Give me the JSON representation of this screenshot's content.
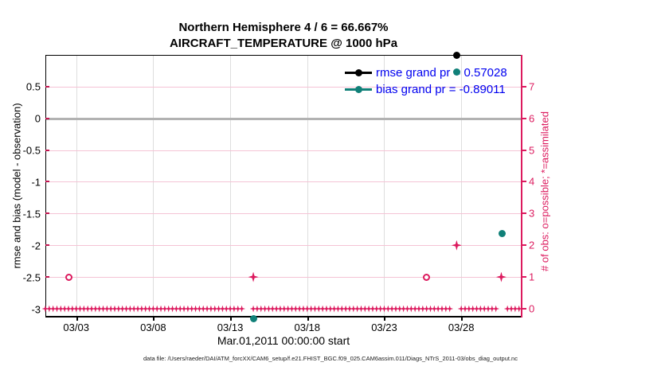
{
  "header": {
    "title": "Northern Hemisphere 4 / 6 = 66.667%",
    "subtitle": "AIRCRAFT_TEMPERATURE @ 1000 hPa"
  },
  "legend": {
    "rmse_label": "rmse grand pr = 0.57028",
    "bias_label": "bias grand pr = -0.89011"
  },
  "footer": {
    "data_file_text": "data file: /Users/raeder/DAI/ATM_forcXX/CAM6_setup/f.e21.FHIST_BGC.f09_025.CAM6assim.011/Diags_NTrS_2011-03/obs_diag_output.nc"
  },
  "colors": {
    "obs_crimson": "#dc1a5e",
    "bias_teal": "#108078",
    "rmse_black": "#000000",
    "legend_blue": "#0000f0",
    "zero_line_gray": "#b2b2b2",
    "pink_grid": "#f5c3d5",
    "gray_grid": "#dedede"
  },
  "chart_data": {
    "type": "scatter",
    "title": "Northern Hemisphere 4 / 6 = 66.667%",
    "subtitle": "AIRCRAFT_TEMPERATURE @ 1000 hPa",
    "xlabel": "Mar.01,2011 00:00:00 start",
    "ylabel_left": "rmse and bias (model - observation)",
    "ylabel_right": "# of obs: o=possible; *=assimilated",
    "x_tick_labels": [
      "03/03",
      "03/08",
      "03/13",
      "03/18",
      "03/23",
      "03/28"
    ],
    "x_tick_days": [
      3,
      8,
      13,
      18,
      23,
      28
    ],
    "x_range_days": [
      1.0,
      31.9
    ],
    "ylim_left": [
      -3.12,
      1.0
    ],
    "ylim_right": [
      0,
      8
    ],
    "left_tick_values": [
      0.5,
      0,
      -0.5,
      -1,
      -1.5,
      -2,
      -2.5,
      -3
    ],
    "right_tick_values": [
      7,
      6,
      5,
      4,
      3,
      2,
      1,
      0
    ],
    "grid": {
      "vertical": true,
      "horizontal_pink_at_right_integers": true,
      "zero_reference_line_at": 0
    },
    "legend_position": "top-right-inside",
    "series": [
      {
        "name": "rmse",
        "grand_mean": 0.57028,
        "marker": "filled-circle",
        "color": "#000000",
        "points": [
          {
            "day": 27.7,
            "value": 0.99
          }
        ]
      },
      {
        "name": "bias",
        "grand_mean": -0.89011,
        "marker": "filled-circle",
        "color": "#108078",
        "points": [
          {
            "day": 27.7,
            "value": 0.73
          },
          {
            "day": 30.65,
            "value": -1.81
          },
          {
            "day": 14.5,
            "value": -3.14
          }
        ]
      },
      {
        "name": "possible_obs",
        "marker": "open-circle",
        "color": "#dc1a5e",
        "axis": "right",
        "points": [
          {
            "day": 2.54,
            "count": 1
          },
          {
            "day": 25.72,
            "count": 1
          }
        ]
      },
      {
        "name": "assimilated_obs",
        "marker": "asterisk",
        "color": "#dc1a5e",
        "axis": "right",
        "points": [
          {
            "day": 14.5,
            "count": 1
          },
          {
            "day": 27.7,
            "count": 2
          },
          {
            "day": 30.6,
            "count": 1
          }
        ]
      }
    ],
    "zero_obs_band": {
      "description": "dense asterisk/circle markers at 0 obs for every 6-hour bin",
      "start_day": 1.0,
      "end_day": 31.9,
      "step_days": 0.25,
      "gaps": [
        [
          13.85,
          14.45
        ],
        [
          27.4,
          27.85
        ],
        [
          30.45,
          30.8
        ]
      ]
    }
  }
}
